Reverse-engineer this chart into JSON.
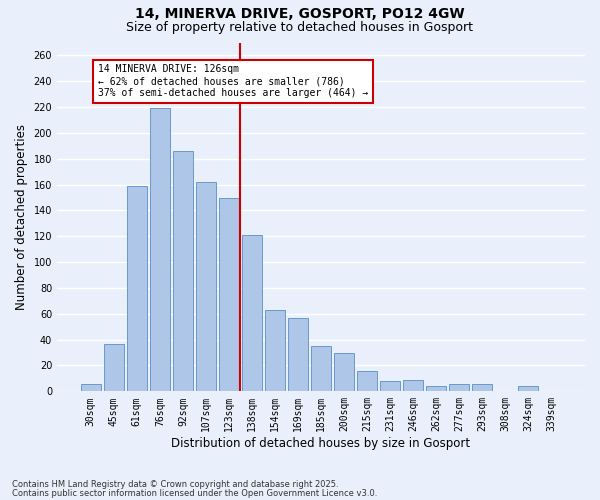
{
  "title1": "14, MINERVA DRIVE, GOSPORT, PO12 4GW",
  "title2": "Size of property relative to detached houses in Gosport",
  "xlabel": "Distribution of detached houses by size in Gosport",
  "ylabel": "Number of detached properties",
  "categories": [
    "30sqm",
    "45sqm",
    "61sqm",
    "76sqm",
    "92sqm",
    "107sqm",
    "123sqm",
    "138sqm",
    "154sqm",
    "169sqm",
    "185sqm",
    "200sqm",
    "215sqm",
    "231sqm",
    "246sqm",
    "262sqm",
    "277sqm",
    "293sqm",
    "308sqm",
    "324sqm",
    "339sqm"
  ],
  "values": [
    6,
    37,
    159,
    219,
    186,
    162,
    150,
    121,
    63,
    57,
    35,
    30,
    16,
    8,
    9,
    4,
    6,
    6,
    0,
    4,
    0
  ],
  "bar_color": "#aec6e8",
  "bar_edge_color": "#5a8fc4",
  "vline_color": "#cc0000",
  "annotation_text": "14 MINERVA DRIVE: 126sqm\n← 62% of detached houses are smaller (786)\n37% of semi-detached houses are larger (464) →",
  "annotation_box_color": "#ffffff",
  "annotation_box_edgecolor": "#cc0000",
  "ylim": [
    0,
    270
  ],
  "yticks": [
    0,
    20,
    40,
    60,
    80,
    100,
    120,
    140,
    160,
    180,
    200,
    220,
    240,
    260
  ],
  "bg_color": "#eaf0fb",
  "grid_color": "#ffffff",
  "footer1": "Contains HM Land Registry data © Crown copyright and database right 2025.",
  "footer2": "Contains public sector information licensed under the Open Government Licence v3.0.",
  "title_fontsize": 10,
  "subtitle_fontsize": 9,
  "tick_fontsize": 7,
  "label_fontsize": 8.5,
  "footer_fontsize": 6
}
